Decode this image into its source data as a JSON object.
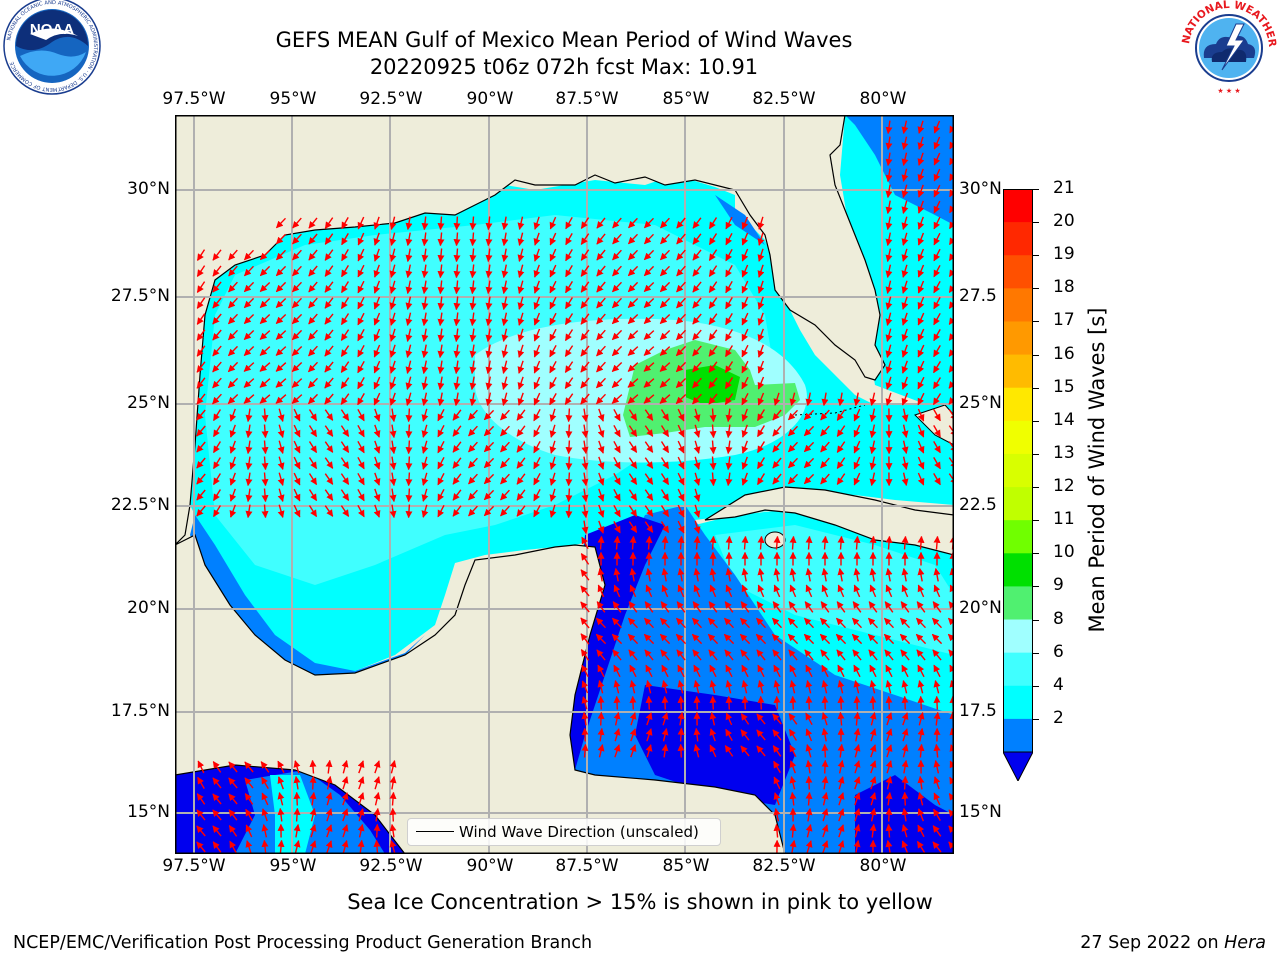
{
  "header": {
    "title_line1": "GEFS MEAN Gulf of Mexico Mean Period of Wind Waves",
    "title_line2": "20220925 t06z 072h fcst   Max: 10.91"
  },
  "logos": {
    "noaa": {
      "label": "NOAA",
      "ring_text": "NATIONAL OCEANIC AND ATMOSPHERIC ADMINISTRATION · U.S. DEPARTMENT OF COMMERCE"
    },
    "nws": {
      "ring_text": "NATIONAL WEATHER SERVICE"
    }
  },
  "map": {
    "lon_labels": [
      "97.5°W",
      "95°W",
      "92.5°W",
      "90°W",
      "87.5°W",
      "85°W",
      "82.5°W",
      "80°W"
    ],
    "lat_labels_left": [
      "30°N",
      "27.5°N",
      "25°N",
      "22.5°N",
      "20°N",
      "17.5°N",
      "15°N"
    ],
    "lat_labels_right": [
      "30°N",
      "27.5",
      "25°N",
      "22.5",
      "20°N",
      "17.5",
      "15°N"
    ],
    "legend_text": "Wind Wave Direction (unscaled)",
    "colors": {
      "land": "#eeedda",
      "ocean_4_6": "#00ffff",
      "ocean_6_8": "#40ffff",
      "ocean_8_9": "#a0ffff",
      "ocean_2_4": "#0080ff",
      "ocean_lt2": "#0000ee",
      "ocean_9_10": "#50f070",
      "ocean_10_11": "#00e000",
      "arrows": "#ff0000"
    }
  },
  "colorbar": {
    "label": "Mean Period of Wind Waves [s]",
    "ticks": [
      "21",
      "20",
      "19",
      "18",
      "17",
      "16",
      "15",
      "14",
      "13",
      "12",
      "11",
      "10",
      "9",
      "8",
      "6",
      "4",
      "2"
    ],
    "colors": [
      "#ff0000",
      "#ff2800",
      "#ff5000",
      "#ff7800",
      "#ff9900",
      "#ffbb00",
      "#ffe800",
      "#f0ff00",
      "#d8ff00",
      "#c0ff00",
      "#70ff00",
      "#00e000",
      "#50f070",
      "#a0ffff",
      "#40ffff",
      "#00ffff",
      "#0080ff"
    ],
    "extend_color": "#0000ee"
  },
  "caption": "Sea Ice Concentration > 15% is shown in pink to yellow",
  "footer": {
    "left": "NCEP/EMC/Verification Post Processing Product Generation Branch",
    "right_prefix": "27 Sep 2022 on ",
    "right_host": "Hera"
  }
}
